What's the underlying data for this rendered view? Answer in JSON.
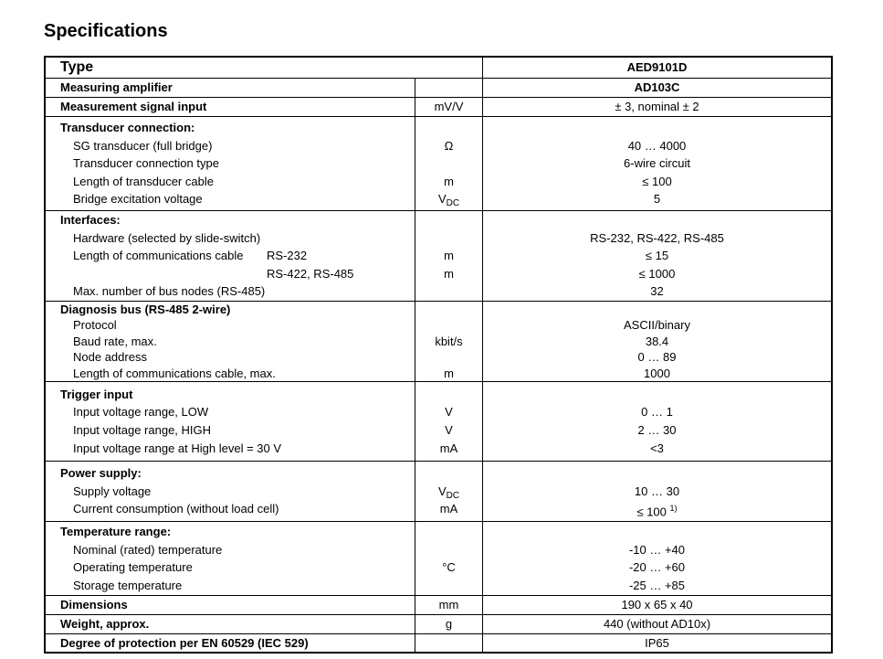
{
  "title": "Specifications",
  "header": {
    "label": "Type",
    "value": "AED9101D"
  },
  "sections": [
    {
      "lh": 20,
      "pad": 0,
      "lines": [
        {
          "label": "Measuring amplifier",
          "bold": true,
          "unit": "",
          "value": "AD103C",
          "vbold": true
        }
      ]
    },
    {
      "lh": 20,
      "pad": 0,
      "lines": [
        {
          "label": "Measurement signal input",
          "bold": true,
          "unit": "mV/V",
          "value": "± 3, nominal  ± 2"
        }
      ]
    },
    {
      "lh": 19.6,
      "pad": 2,
      "lines": [
        {
          "label": "Transducer connection:",
          "bold": true,
          "unit": "",
          "value": ""
        },
        {
          "label": "SG transducer (full bridge)",
          "unit": "Ω",
          "value": "40 … 4000"
        },
        {
          "label": "Transducer connection type",
          "unit": "",
          "value": "6-wire circuit"
        },
        {
          "label": "Length of transducer cable",
          "unit": "m",
          "value": "≤ 100"
        },
        {
          "label": "Bridge excitation voltage",
          "unit": "V",
          "unit_sub": "DC",
          "value": "5"
        }
      ]
    },
    {
      "lh": 19.6,
      "pad": 0,
      "lines": [
        {
          "label": "Interfaces:",
          "bold": true,
          "unit": "",
          "value": ""
        },
        {
          "label": "Hardware (selected by slide-switch)",
          "unit": "",
          "value": "RS-232, RS-422, RS-485"
        },
        {
          "label": "Length of communications cable",
          "extra": "RS-232",
          "unit": "m",
          "value": "≤ 15"
        },
        {
          "label": "",
          "extra": "RS-422, RS-485",
          "unit": "m",
          "value": "≤ 1000"
        },
        {
          "label": "Max. number of bus nodes (RS-485)",
          "unit": "",
          "value": "32"
        }
      ]
    },
    {
      "lh": 17.4,
      "pad": 0,
      "lines": [
        {
          "label": "Diagnosis bus (RS-485 2-wire)",
          "bold": true,
          "unit": "",
          "value": ""
        },
        {
          "label": "Protocol",
          "unit": "",
          "value": "ASCII/binary"
        },
        {
          "label": "Baud rate, max.",
          "unit": "kbit/s",
          "value": "38.4"
        },
        {
          "label": "Node address",
          "unit": "",
          "value": "0 … 89"
        },
        {
          "label": "Length of communications cable, max.",
          "unit": "m",
          "value": "1000"
        }
      ]
    },
    {
      "lh": 19.6,
      "pad": 4,
      "lines": [
        {
          "label": "Trigger input",
          "bold": true,
          "unit": "",
          "value": ""
        },
        {
          "label": "Input voltage range, LOW",
          "unit": "V",
          "value": "0 … 1"
        },
        {
          "label": "Input voltage range, HIGH",
          "unit": "V",
          "value": "2 … 30"
        },
        {
          "label": "Input voltage range at High level = 30 V",
          "unit": "mA",
          "value": "<3"
        }
      ]
    },
    {
      "lh": 19.6,
      "pad": 3,
      "lines": [
        {
          "label": "Power supply:",
          "bold": true,
          "unit": "",
          "value": ""
        },
        {
          "label": "Supply voltage",
          "unit": "V",
          "unit_sub": "DC",
          "value": "10 … 30"
        },
        {
          "label": "Current consumption (without load cell)",
          "unit": "mA",
          "value": "≤ 100",
          "value_sup": "1)"
        }
      ]
    },
    {
      "lh": 19.6,
      "pad": 1,
      "lines": [
        {
          "label": "Temperature range:",
          "bold": true,
          "unit": "",
          "value": ""
        },
        {
          "label": "Nominal (rated) temperature",
          "unit": "",
          "value": "-10  … +40"
        },
        {
          "label": "Operating temperature",
          "unit": "°C",
          "value": "-20  … +60"
        },
        {
          "label": "Storage temperature",
          "unit": "",
          "value": "-25  … +85"
        }
      ]
    },
    {
      "lh": 20,
      "pad": 0,
      "lines": [
        {
          "label": "Dimensions",
          "bold": true,
          "unit": "mm",
          "value": "190 x 65 x 40"
        }
      ]
    },
    {
      "lh": 20,
      "pad": 0,
      "lines": [
        {
          "label": "Weight, approx.",
          "bold": true,
          "unit": "g",
          "value": "440 (without AD10x)"
        }
      ]
    },
    {
      "lh": 19,
      "pad": 0,
      "lines": [
        {
          "label": "Degree of protection per EN 60529 (IEC 529)",
          "bold": true,
          "unit": "",
          "value": "IP65"
        }
      ]
    }
  ]
}
